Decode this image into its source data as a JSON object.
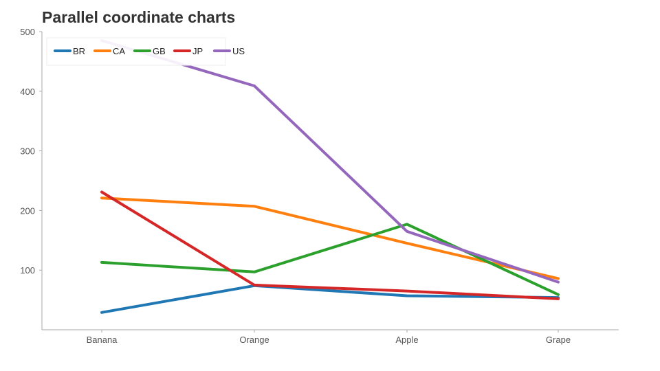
{
  "chart_data": {
    "type": "line",
    "title": "Parallel coordinate charts",
    "categories": [
      "Banana",
      "Orange",
      "Apple",
      "Grape"
    ],
    "ylim": [
      0,
      500
    ],
    "yticks": [
      100,
      200,
      300,
      400,
      500
    ],
    "grid": false,
    "legend_position": "top-left",
    "series": [
      {
        "name": "BR",
        "color": "#1f77b4",
        "values": [
          29,
          74,
          57,
          54
        ]
      },
      {
        "name": "CA",
        "color": "#ff7f0e",
        "values": [
          221,
          207,
          145,
          86
        ]
      },
      {
        "name": "GB",
        "color": "#2ca02c",
        "values": [
          113,
          97,
          177,
          59
        ]
      },
      {
        "name": "JP",
        "color": "#d62728",
        "values": [
          231,
          75,
          65,
          52
        ]
      },
      {
        "name": "US",
        "color": "#9467bd",
        "values": [
          485,
          409,
          165,
          80
        ]
      }
    ]
  }
}
